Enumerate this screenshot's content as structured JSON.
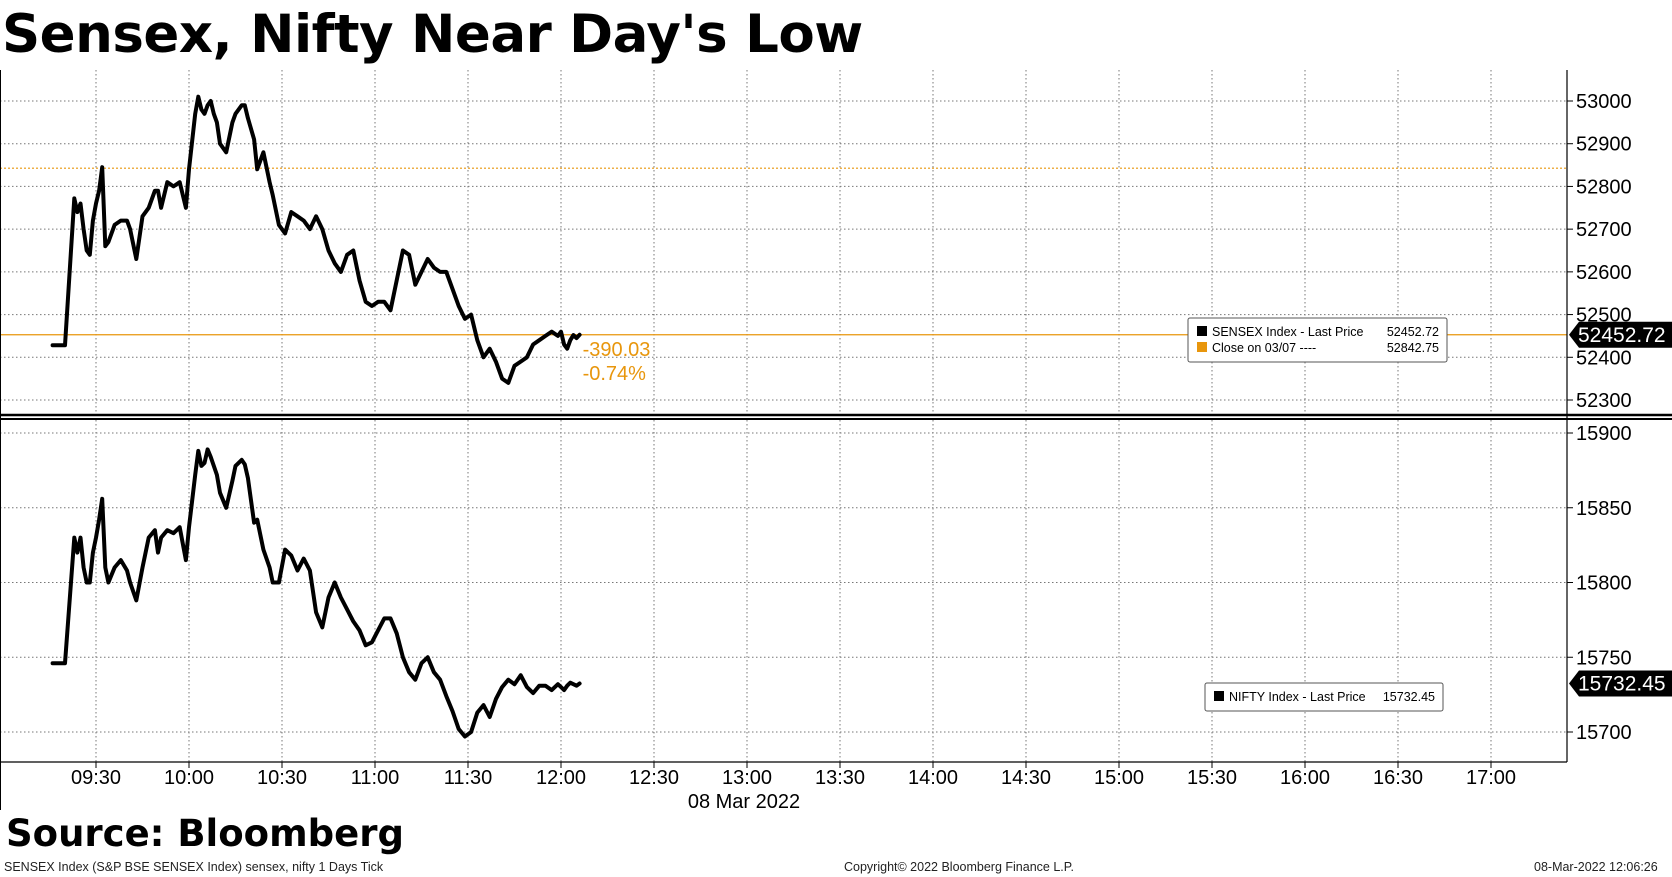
{
  "title": "Sensex, Nifty Near Day's Low",
  "source": "Source: Bloomberg",
  "footer": {
    "left": "SENSEX Index (S&P BSE SENSEX Index) sensex, nifty 1 Days  Tick",
    "center": "Copyright© 2022 Bloomberg Finance L.P.",
    "right": "08-Mar-2022 12:06:26"
  },
  "colors": {
    "line": "#000000",
    "accent": "#E8960C",
    "grid": "#777777"
  },
  "chart_data": [
    {
      "type": "line",
      "series": [
        {
          "name": "SENSEX Index",
          "x": [
            "09:16",
            "09:20",
            "09:23",
            "09:24",
            "09:25",
            "09:26",
            "09:27",
            "09:28",
            "09:29",
            "09:30",
            "09:31",
            "09:32",
            "09:33",
            "09:34",
            "09:36",
            "09:38",
            "09:40",
            "09:41",
            "09:43",
            "09:45",
            "09:47",
            "09:49",
            "09:50",
            "09:51",
            "09:53",
            "09:55",
            "09:57",
            "09:59",
            "10:00",
            "10:02",
            "10:03",
            "10:04",
            "10:05",
            "10:06",
            "10:07",
            "10:08",
            "10:09",
            "10:10",
            "10:12",
            "10:14",
            "10:15",
            "10:17",
            "10:18",
            "10:19",
            "10:21",
            "10:22",
            "10:24",
            "10:26",
            "10:27",
            "10:29",
            "10:31",
            "10:33",
            "10:35",
            "10:37",
            "10:39",
            "10:41",
            "10:43",
            "10:45",
            "10:47",
            "10:49",
            "10:51",
            "10:53",
            "10:55",
            "10:57",
            "10:59",
            "11:01",
            "11:03",
            "11:05",
            "11:07",
            "11:09",
            "11:11",
            "11:13",
            "11:15",
            "11:17",
            "11:19",
            "11:21",
            "11:23",
            "11:25",
            "11:27",
            "11:29",
            "11:31",
            "11:33",
            "11:35",
            "11:37",
            "11:39",
            "11:41",
            "11:43",
            "11:45",
            "11:47",
            "11:49",
            "11:51",
            "11:53",
            "11:55",
            "11:57",
            "11:59",
            "12:00",
            "12:01",
            "12:02",
            "12:03",
            "12:04",
            "12:05",
            "12:06"
          ],
          "y": [
            52428,
            52428,
            52772,
            52740,
            52760,
            52700,
            52650,
            52640,
            52720,
            52760,
            52790,
            52845,
            52660,
            52670,
            52710,
            52720,
            52720,
            52700,
            52630,
            52730,
            52750,
            52790,
            52790,
            52750,
            52810,
            52800,
            52810,
            52750,
            52840,
            52970,
            53010,
            52980,
            52970,
            52990,
            53000,
            52970,
            52950,
            52900,
            52880,
            52950,
            52970,
            52990,
            52990,
            52960,
            52910,
            52840,
            52880,
            52810,
            52780,
            52710,
            52690,
            52740,
            52730,
            52720,
            52700,
            52730,
            52700,
            52650,
            52620,
            52600,
            52640,
            52650,
            52580,
            52530,
            52520,
            52530,
            52530,
            52510,
            52580,
            52650,
            52640,
            52570,
            52600,
            52630,
            52610,
            52600,
            52600,
            52560,
            52520,
            52490,
            52500,
            52440,
            52400,
            52420,
            52390,
            52350,
            52340,
            52380,
            52390,
            52400,
            52430,
            52440,
            52450,
            52460,
            52450,
            52460,
            52430,
            52420,
            52440,
            52452,
            52445,
            52452.72
          ]
        }
      ],
      "reference_line": {
        "name": "Close on 03/07",
        "value": 52842.75
      },
      "last_value_label": "52452.72",
      "change_labels": [
        "-390.03",
        "-0.74%"
      ],
      "legend": [
        {
          "label": "SENSEX Index  - Last Price",
          "value": "52452.72",
          "color": "#000000"
        },
        {
          "label": "Close on 03/07 ----",
          "value": "52842.75",
          "color": "#E8960C"
        }
      ],
      "legend_position": "right",
      "yticks": [
        "52300",
        "52400",
        "52500",
        "52600",
        "52700",
        "52800",
        "52900",
        "53000"
      ],
      "ylim": [
        52260,
        53070
      ],
      "grid": true
    },
    {
      "type": "line",
      "series": [
        {
          "name": "NIFTY Index",
          "x": [
            "09:16",
            "09:20",
            "09:23",
            "09:24",
            "09:25",
            "09:26",
            "09:27",
            "09:28",
            "09:29",
            "09:30",
            "09:31",
            "09:32",
            "09:33",
            "09:34",
            "09:36",
            "09:38",
            "09:40",
            "09:41",
            "09:43",
            "09:45",
            "09:47",
            "09:49",
            "09:50",
            "09:51",
            "09:53",
            "09:55",
            "09:57",
            "09:59",
            "10:00",
            "10:02",
            "10:03",
            "10:04",
            "10:05",
            "10:06",
            "10:07",
            "10:08",
            "10:09",
            "10:10",
            "10:12",
            "10:14",
            "10:15",
            "10:17",
            "10:18",
            "10:19",
            "10:21",
            "10:22",
            "10:24",
            "10:26",
            "10:27",
            "10:29",
            "10:31",
            "10:33",
            "10:35",
            "10:37",
            "10:39",
            "10:41",
            "10:43",
            "10:45",
            "10:47",
            "10:49",
            "10:51",
            "10:53",
            "10:55",
            "10:57",
            "10:59",
            "11:01",
            "11:03",
            "11:05",
            "11:07",
            "11:09",
            "11:11",
            "11:13",
            "11:15",
            "11:17",
            "11:19",
            "11:21",
            "11:23",
            "11:25",
            "11:27",
            "11:29",
            "11:31",
            "11:33",
            "11:35",
            "11:37",
            "11:39",
            "11:41",
            "11:43",
            "11:45",
            "11:47",
            "11:49",
            "11:51",
            "11:53",
            "11:55",
            "11:57",
            "11:59",
            "12:00",
            "12:01",
            "12:02",
            "12:03",
            "12:04",
            "12:05",
            "12:06"
          ],
          "y": [
            15746,
            15746,
            15830,
            15820,
            15830,
            15810,
            15800,
            15800,
            15820,
            15830,
            15842,
            15856,
            15810,
            15800,
            15810,
            15815,
            15808,
            15800,
            15788,
            15810,
            15830,
            15835,
            15820,
            15830,
            15835,
            15833,
            15837,
            15815,
            15837,
            15872,
            15888,
            15878,
            15880,
            15889,
            15884,
            15878,
            15872,
            15860,
            15850,
            15868,
            15878,
            15882,
            15879,
            15870,
            15840,
            15842,
            15822,
            15810,
            15800,
            15800,
            15822,
            15818,
            15808,
            15816,
            15808,
            15780,
            15770,
            15790,
            15800,
            15790,
            15782,
            15774,
            15768,
            15758,
            15760,
            15768,
            15776,
            15776,
            15766,
            15750,
            15740,
            15735,
            15746,
            15750,
            15740,
            15735,
            15724,
            15714,
            15702,
            15697,
            15700,
            15713,
            15718,
            15710,
            15722,
            15730,
            15735,
            15732,
            15738,
            15730,
            15726,
            15731,
            15731,
            15728,
            15732,
            15730,
            15728,
            15731,
            15733,
            15732,
            15731,
            15732.45
          ]
        }
      ],
      "last_value_label": "15732.45",
      "legend": [
        {
          "label": "NIFTY Index  - Last Price",
          "value": "15732.45",
          "color": "#000000"
        }
      ],
      "legend_position": "right",
      "yticks": [
        "15700",
        "15750",
        "15800",
        "15850",
        "15900"
      ],
      "ylim": [
        15680,
        15912
      ],
      "grid": true
    }
  ],
  "xaxis": {
    "ticks": [
      "09:30",
      "10:00",
      "10:30",
      "11:00",
      "11:30",
      "12:00",
      "12:30",
      "13:00",
      "13:30",
      "14:00",
      "14:30",
      "15:00",
      "15:30",
      "16:00",
      "16:30",
      "17:00"
    ],
    "date_label": "08 Mar 2022"
  }
}
